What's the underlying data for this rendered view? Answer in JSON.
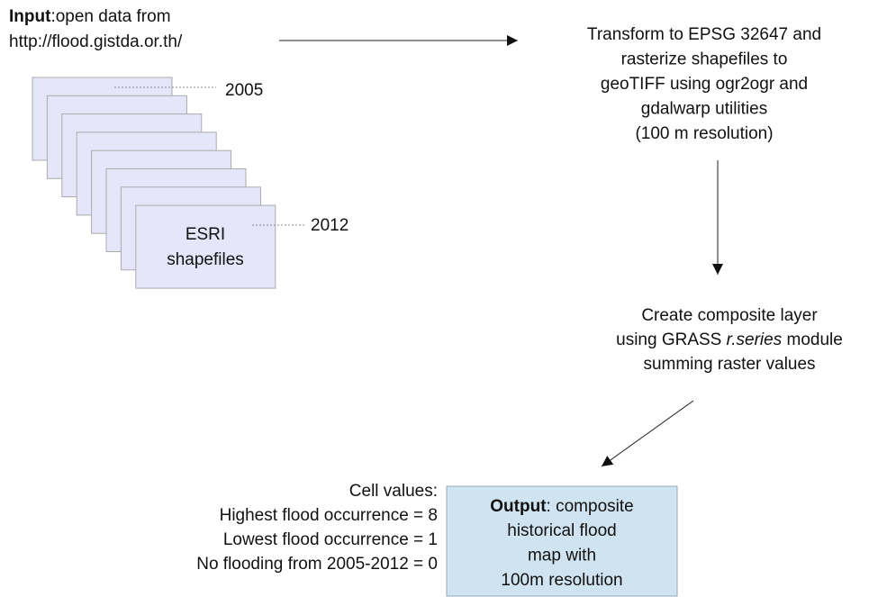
{
  "input": {
    "label": "Input",
    "text": ":open data from",
    "url": "http://flood.gistda.or.th/"
  },
  "stack": {
    "first_year": "2005",
    "last_year": "2012",
    "label_lines": [
      "ESRI",
      "shapefiles"
    ]
  },
  "steps": [
    {
      "lines": [
        "Transform to EPSG 32647 and",
        "rasterize shapefiles to",
        "geoTIFF using ogr2ogr and",
        "gdalwarp utilities",
        "(100 m resolution)"
      ]
    },
    {
      "lines": [
        "Create composite layer",
        "summing raster values"
      ],
      "module_line": {
        "before": "using GRASS ",
        "module": "r.series",
        "after": " module"
      }
    }
  ],
  "cell_values": {
    "title": "Cell values:",
    "lines": [
      "Highest flood occurrence  = 8",
      "Lowest flood occurrence = 1",
      "No flooding from 2005-2012 = 0"
    ]
  },
  "output": {
    "label": "Output",
    "first_line": ": composite",
    "lines": [
      "historical flood",
      "map with",
      "100m resolution"
    ]
  }
}
